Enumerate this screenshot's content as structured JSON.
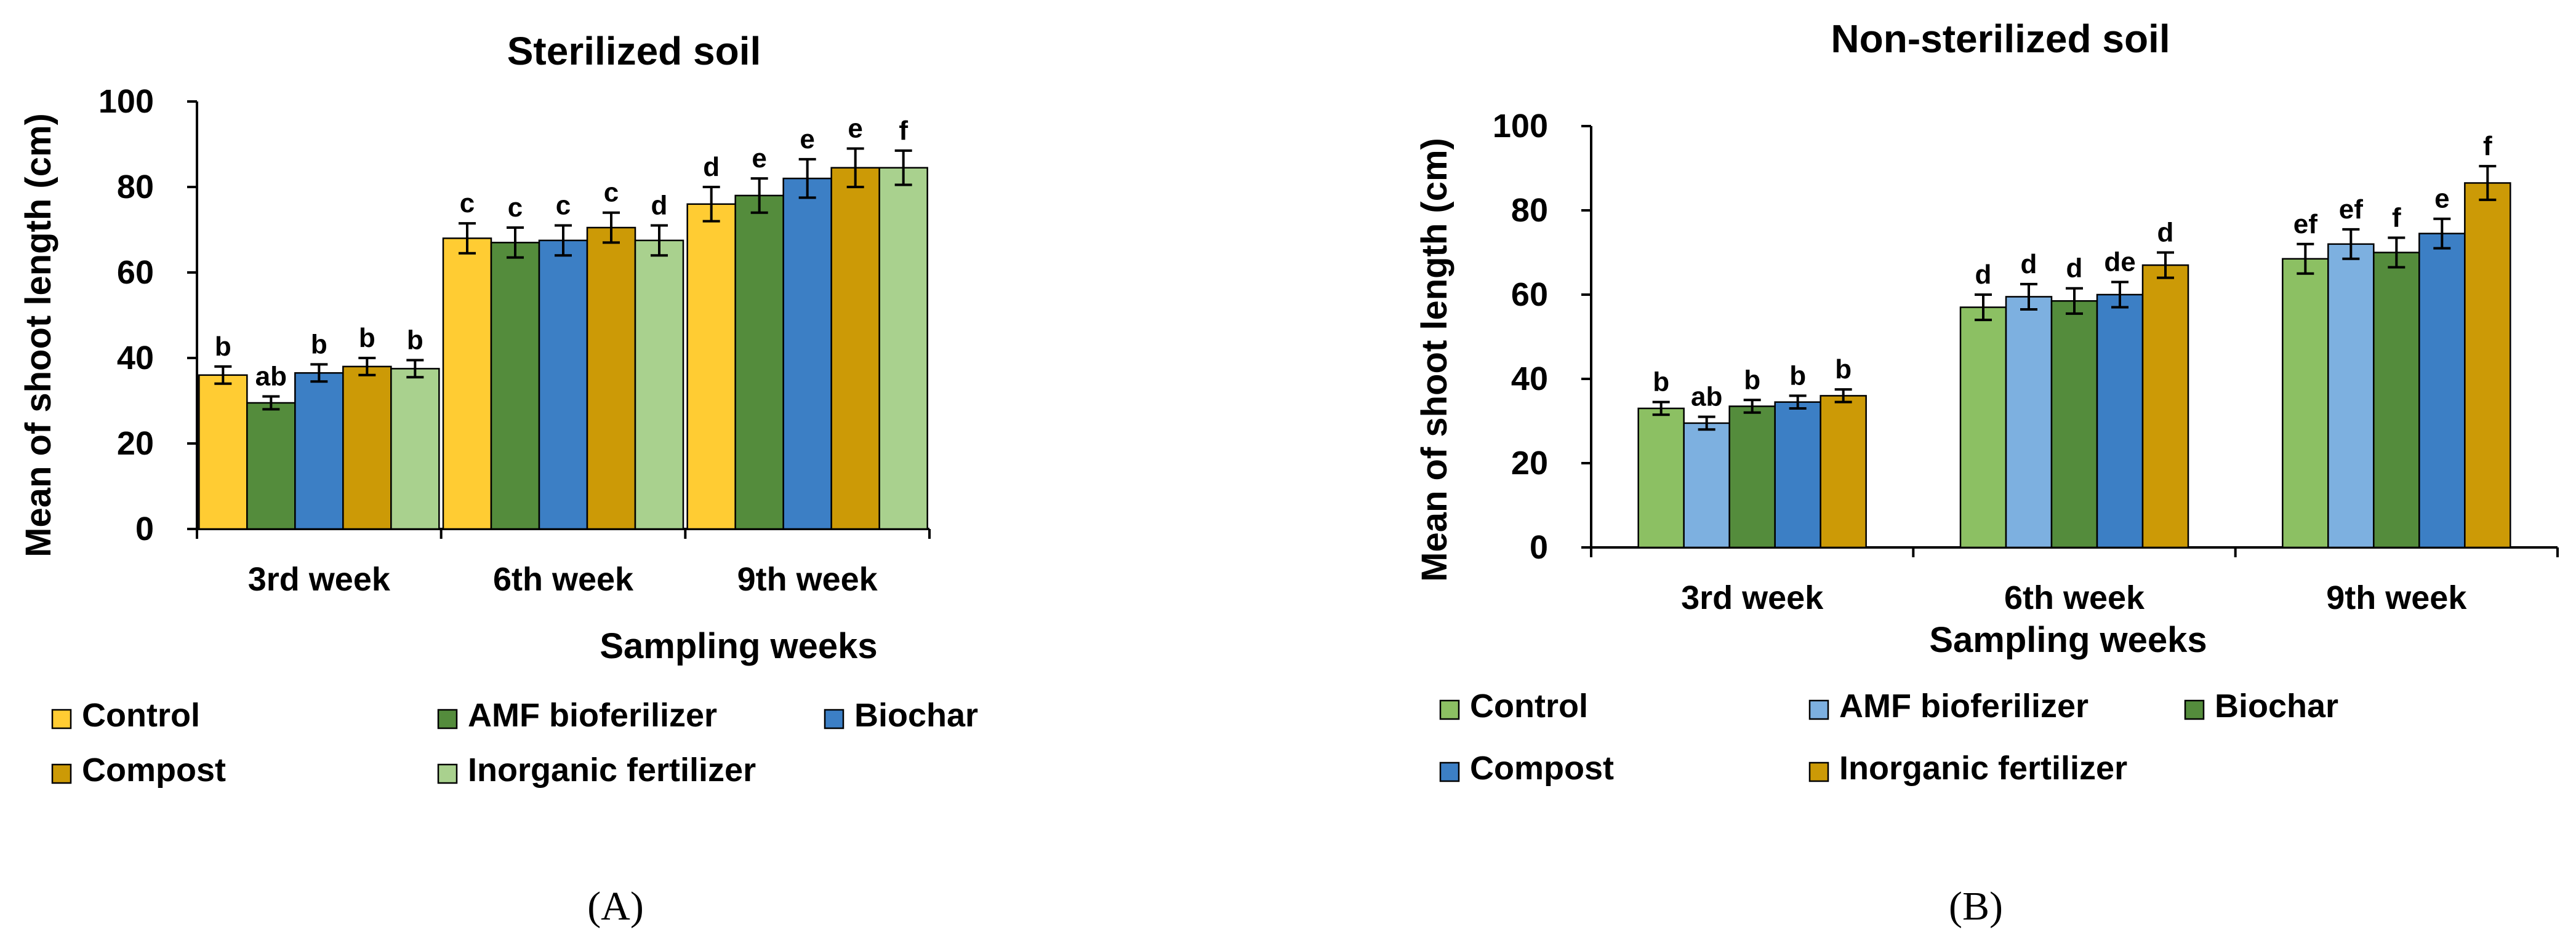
{
  "chart_data": [
    {
      "type": "bar",
      "title": "Sterilized soil",
      "xlabel": "Sampling weeks",
      "ylabel": "Mean of shoot length (cm)",
      "ylim": [
        0,
        100
      ],
      "yticks": [
        0,
        20,
        40,
        60,
        80,
        100
      ],
      "categories": [
        "3rd week",
        "6th week",
        "9th week"
      ],
      "panel_label": "(A)",
      "series": [
        {
          "name": "Control",
          "color": "#FFCC33",
          "values": [
            36,
            68,
            76
          ],
          "errors": [
            2,
            3.5,
            4
          ],
          "letters": [
            "b",
            "c",
            "d"
          ]
        },
        {
          "name": "AMF bioferilizer",
          "color": "#548C3C",
          "values": [
            29.5,
            67,
            78
          ],
          "errors": [
            1.5,
            3.5,
            4
          ],
          "letters": [
            "ab",
            "c",
            "e"
          ]
        },
        {
          "name": "Biochar",
          "color": "#3C7FC5",
          "values": [
            36.5,
            67.5,
            82
          ],
          "errors": [
            2,
            3.5,
            4.5
          ],
          "letters": [
            "b",
            "c",
            "e"
          ]
        },
        {
          "name": "Compost",
          "color": "#CC9A06",
          "values": [
            38,
            70.5,
            84.5
          ],
          "errors": [
            2,
            3.5,
            4.5
          ],
          "letters": [
            "b",
            "c",
            "e"
          ]
        },
        {
          "name": "Inorganic fertilizer",
          "color": "#A9D18E",
          "values": [
            37.5,
            67.5,
            84.5
          ],
          "errors": [
            2,
            3.5,
            4
          ],
          "letters": [
            "b",
            "d",
            "f"
          ]
        }
      ]
    },
    {
      "type": "bar",
      "title": "Non-sterilized soil",
      "xlabel": "Sampling weeks",
      "ylabel": "Mean of shoot length (cm)",
      "ylim": [
        0,
        100
      ],
      "yticks": [
        0,
        20,
        40,
        60,
        80,
        100
      ],
      "categories": [
        "3rd week",
        "6th week",
        "9th week"
      ],
      "panel_label": "(B)",
      "series": [
        {
          "name": "Control",
          "color": "#8CC063",
          "values": [
            33,
            57,
            68.5
          ],
          "errors": [
            1.5,
            3,
            3.5
          ],
          "letters": [
            "b",
            "d",
            "ef"
          ]
        },
        {
          "name": "AMF bioferilizer",
          "color": "#7DB0E0",
          "values": [
            29.5,
            59.5,
            72
          ],
          "errors": [
            1.5,
            3,
            3.5
          ],
          "letters": [
            "ab",
            "d",
            "ef"
          ]
        },
        {
          "name": "Biochar",
          "color": "#548C3C",
          "values": [
            33.5,
            58.5,
            70
          ],
          "errors": [
            1.5,
            3,
            3.5
          ],
          "letters": [
            "b",
            "d",
            "f"
          ]
        },
        {
          "name": "Compost",
          "color": "#3C7FC5",
          "values": [
            34.5,
            60,
            74.5
          ],
          "errors": [
            1.5,
            3,
            3.5
          ],
          "letters": [
            "b",
            "de",
            "e"
          ]
        },
        {
          "name": "Inorganic fertilizer",
          "color": "#CC9A06",
          "values": [
            36,
            67,
            86.5
          ],
          "errors": [
            1.5,
            3,
            4
          ],
          "letters": [
            "b",
            "d",
            "f"
          ]
        }
      ]
    }
  ]
}
